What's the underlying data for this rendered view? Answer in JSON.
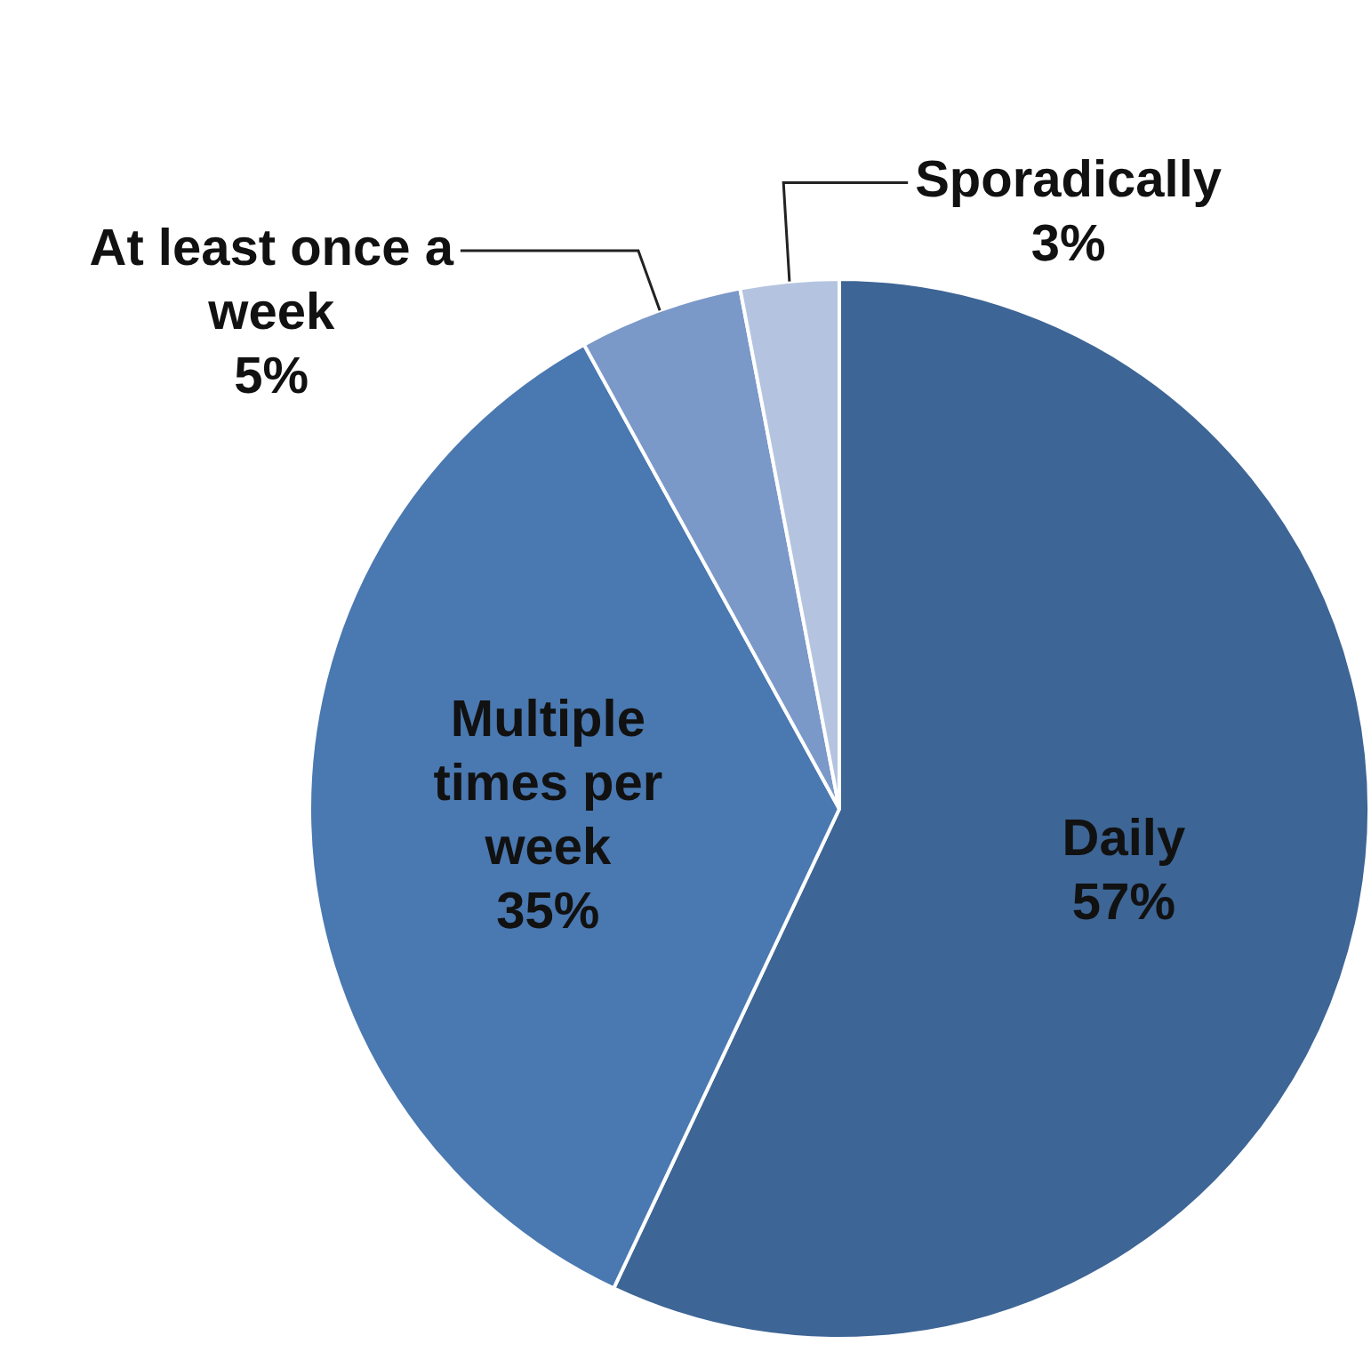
{
  "chart_data": {
    "type": "pie",
    "categories": [
      "Daily",
      "Multiple times per week",
      "At least once a week",
      "Sporadically"
    ],
    "values": [
      57,
      35,
      5,
      3
    ],
    "value_labels": [
      "57%",
      "35%",
      "5%",
      "3%"
    ],
    "colors": [
      "#3d6595",
      "#4a78b0",
      "#7a98c8",
      "#b4c4e0"
    ],
    "legend": false
  }
}
